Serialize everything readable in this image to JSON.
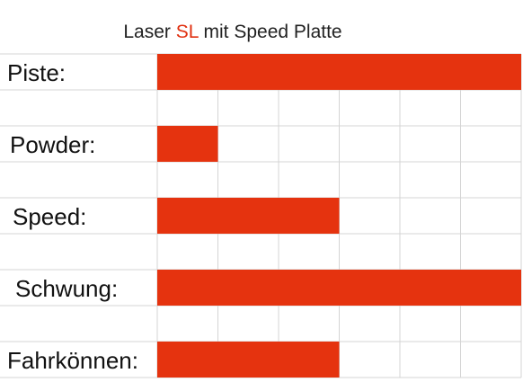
{
  "chart_data": {
    "type": "bar",
    "orientation": "horizontal",
    "title": [
      "Laser",
      "SL",
      "mit Speed Platte"
    ],
    "title_color": "#222222",
    "title_highlight_color": "#e03010",
    "categories": [
      "Piste:",
      "Powder:",
      "Speed:",
      "Schwung:",
      "Fahrkönnen:"
    ],
    "values": [
      6,
      1,
      3,
      6,
      3
    ],
    "color": "#e5330f",
    "xlim": [
      0,
      6
    ],
    "xticks": [
      0,
      1,
      2,
      3,
      4,
      5,
      6
    ],
    "grid": true
  }
}
